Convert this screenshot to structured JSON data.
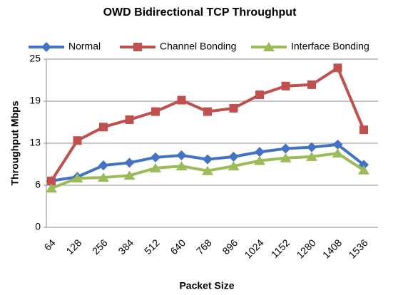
{
  "chart_data": {
    "type": "line",
    "title": "OWD Bidirectional TCP Throughput",
    "x_label": "Packet Size",
    "y_label": "Throughput Mbps",
    "categories": [
      "64",
      "128",
      "256",
      "384",
      "512",
      "640",
      "768",
      "896",
      "1024",
      "1152",
      "1280",
      "1408",
      "1536"
    ],
    "series": [
      {
        "name": "Normal",
        "color": "#4472c4",
        "marker": "diamond",
        "values": [
          6.9,
          7.5,
          9.2,
          9.6,
          10.4,
          10.7,
          10.1,
          10.5,
          11.2,
          11.7,
          11.9,
          12.3,
          9.3
        ]
      },
      {
        "name": "Channel Bonding",
        "color": "#c0504d",
        "marker": "square",
        "values": [
          6.9,
          12.9,
          14.9,
          16.0,
          17.2,
          18.9,
          17.2,
          17.7,
          19.7,
          21.0,
          21.2,
          23.7,
          14.5
        ]
      },
      {
        "name": "Interface Bonding",
        "color": "#9bbb59",
        "marker": "triangle",
        "values": [
          5.8,
          7.3,
          7.4,
          7.7,
          8.8,
          9.1,
          8.4,
          9.1,
          9.9,
          10.3,
          10.5,
          11.0,
          8.5
        ]
      }
    ],
    "ylim": [
      0,
      25
    ],
    "yticks": [
      0,
      {
        "value": 6.25,
        "label": "6"
      },
      {
        "value": 12.5,
        "label": "13"
      },
      {
        "value": 18.75,
        "label": "19"
      },
      25
    ],
    "grid": true,
    "legend": "top"
  }
}
